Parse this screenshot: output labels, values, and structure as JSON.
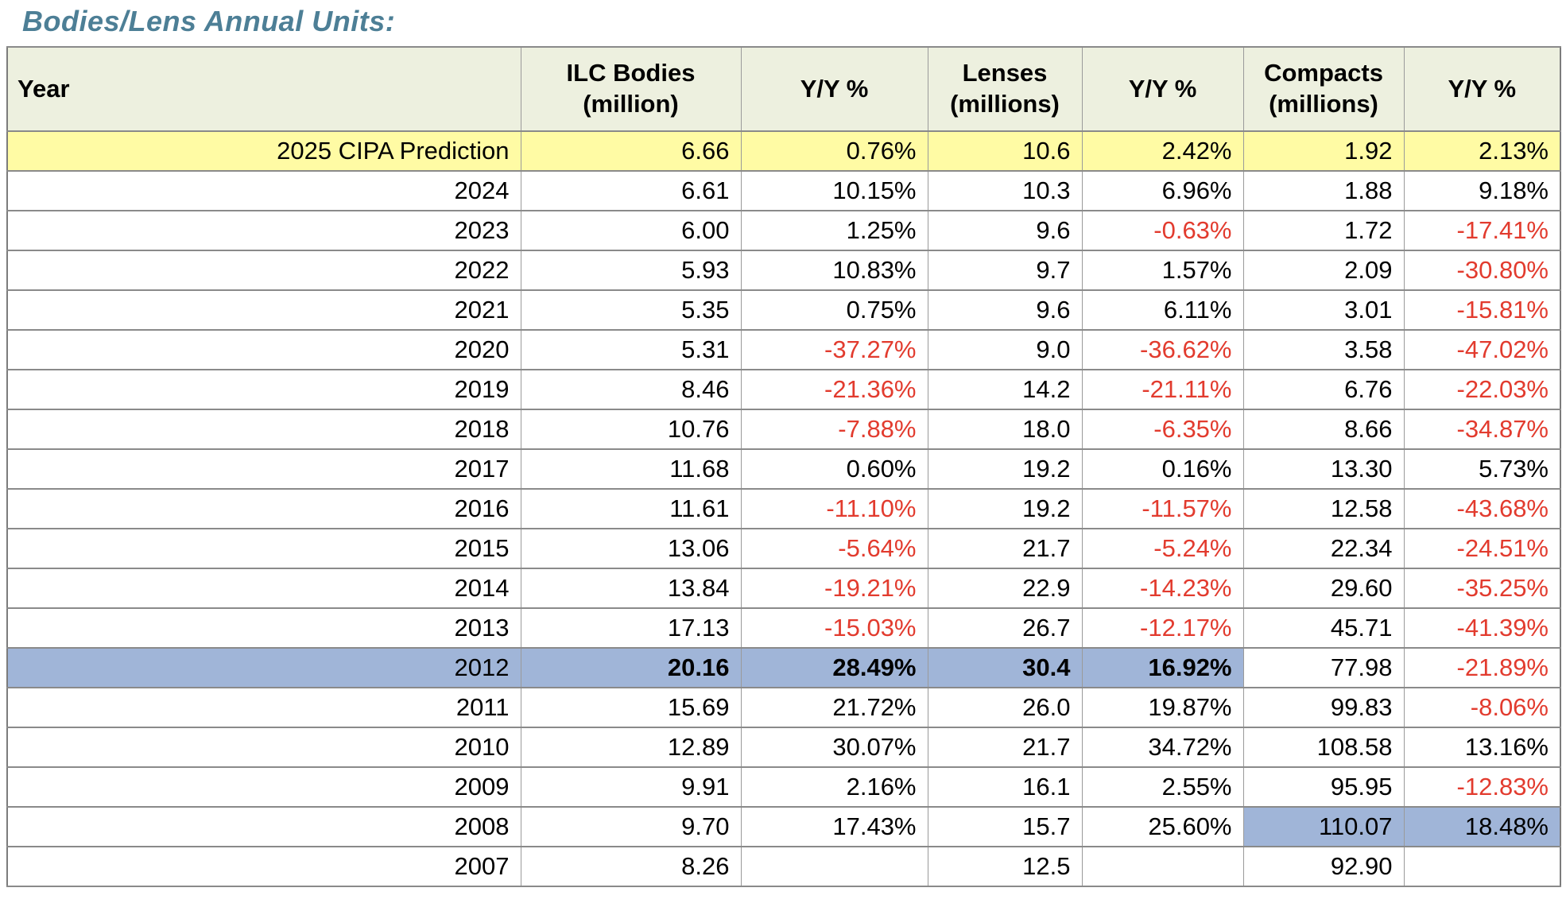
{
  "title": "Bodies/Lens Annual Units:",
  "colors": {
    "title_text": "#4d7f96",
    "header_bg": "#edf0df",
    "fill_yellow": "#fffba4",
    "fill_blue": "#a0b5d8",
    "negative_text": "#e23b2e",
    "body_text": "#000000",
    "border_horizontal": "#8a8a8a",
    "border_vertical": "#9a9a9a",
    "border_outer": "#7c7c7c"
  },
  "chart_data": {
    "type": "table",
    "title": "Bodies/Lens Annual Units:",
    "columns": [
      "Year",
      "ILC Bodies\n(million)",
      "Y/Y %",
      "Lenses\n(millions)",
      "Y/Y %",
      "Compacts\n(millions)",
      "Y/Y %"
    ],
    "rows": [
      {
        "year": "2025 CIPA Prediction",
        "values": [
          "6.66",
          "0.76%",
          "10.6",
          "2.42%",
          "1.92",
          "2.13%"
        ],
        "fill": "yellow",
        "fill_cols": [
          0,
          1,
          2,
          3,
          4,
          5,
          6
        ]
      },
      {
        "year": "2024",
        "values": [
          "6.61",
          "10.15%",
          "10.3",
          "6.96%",
          "1.88",
          "9.18%"
        ]
      },
      {
        "year": "2023",
        "values": [
          "6.00",
          "1.25%",
          "9.6",
          "-0.63%",
          "1.72",
          "-17.41%"
        ]
      },
      {
        "year": "2022",
        "values": [
          "5.93",
          "10.83%",
          "9.7",
          "1.57%",
          "2.09",
          "-30.80%"
        ]
      },
      {
        "year": "2021",
        "values": [
          "5.35",
          "0.75%",
          "9.6",
          "6.11%",
          "3.01",
          "-15.81%"
        ]
      },
      {
        "year": "2020",
        "values": [
          "5.31",
          "-37.27%",
          "9.0",
          "-36.62%",
          "3.58",
          "-47.02%"
        ]
      },
      {
        "year": "2019",
        "values": [
          "8.46",
          "-21.36%",
          "14.2",
          "-21.11%",
          "6.76",
          "-22.03%"
        ]
      },
      {
        "year": "2018",
        "values": [
          "10.76",
          "-7.88%",
          "18.0",
          "-6.35%",
          "8.66",
          "-34.87%"
        ]
      },
      {
        "year": "2017",
        "values": [
          "11.68",
          "0.60%",
          "19.2",
          "0.16%",
          "13.30",
          "5.73%"
        ]
      },
      {
        "year": "2016",
        "values": [
          "11.61",
          "-11.10%",
          "19.2",
          "-11.57%",
          "12.58",
          "-43.68%"
        ]
      },
      {
        "year": "2015",
        "values": [
          "13.06",
          "-5.64%",
          "21.7",
          "-5.24%",
          "22.34",
          "-24.51%"
        ]
      },
      {
        "year": "2014",
        "values": [
          "13.84",
          "-19.21%",
          "22.9",
          "-14.23%",
          "29.60",
          "-35.25%"
        ]
      },
      {
        "year": "2013",
        "values": [
          "17.13",
          "-15.03%",
          "26.7",
          "-12.17%",
          "45.71",
          "-41.39%"
        ]
      },
      {
        "year": "2012",
        "values": [
          "20.16",
          "28.49%",
          "30.4",
          "16.92%",
          "77.98",
          "-21.89%"
        ],
        "fill": "blue",
        "fill_cols": [
          0,
          1,
          2,
          3,
          4
        ],
        "bold_cols": [
          1,
          2,
          3,
          4
        ]
      },
      {
        "year": "2011",
        "values": [
          "15.69",
          "21.72%",
          "26.0",
          "19.87%",
          "99.83",
          "-8.06%"
        ]
      },
      {
        "year": "2010",
        "values": [
          "12.89",
          "30.07%",
          "21.7",
          "34.72%",
          "108.58",
          "13.16%"
        ]
      },
      {
        "year": "2009",
        "values": [
          "9.91",
          "2.16%",
          "16.1",
          "2.55%",
          "95.95",
          "-12.83%"
        ]
      },
      {
        "year": "2008",
        "values": [
          "9.70",
          "17.43%",
          "15.7",
          "25.60%",
          "110.07",
          "18.48%"
        ],
        "fill": "blue",
        "fill_cols": [
          5,
          6
        ]
      },
      {
        "year": "2007",
        "values": [
          "8.26",
          "",
          "12.5",
          "",
          "92.90",
          ""
        ]
      }
    ]
  }
}
